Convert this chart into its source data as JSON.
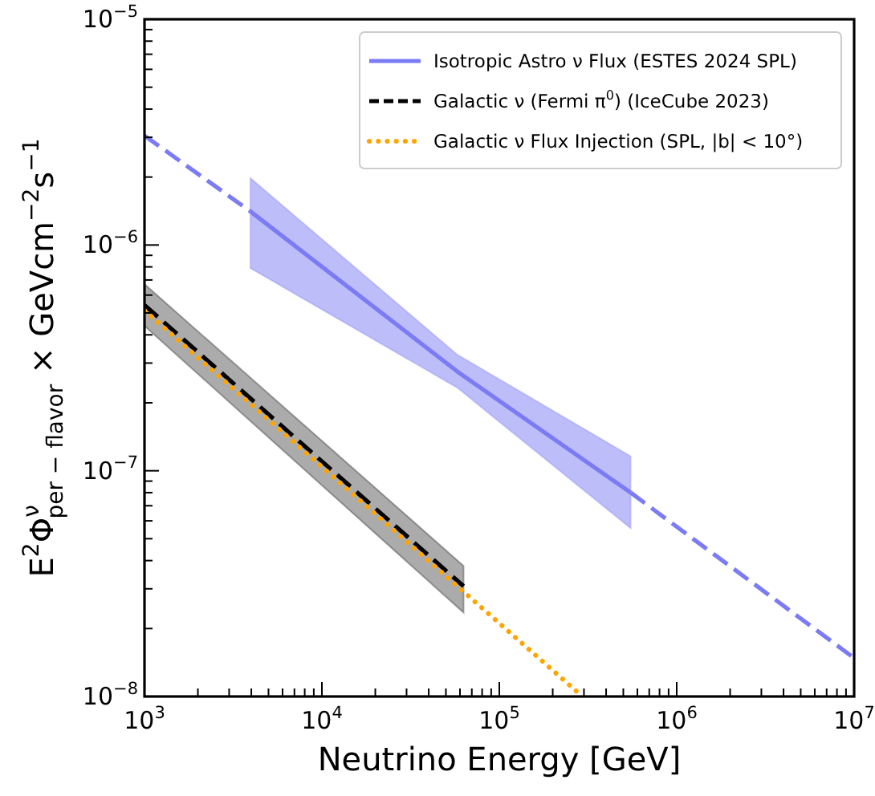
{
  "chart_data": {
    "type": "line",
    "xlabel": "Neutrino Energy [GeV]",
    "ylabel": "E$^{2}$Φ$^{ν}$$_{per − flavor}$ × GeVcm$^{−2}$s$^{−1}$",
    "log": "xy",
    "xlim": [
      1000,
      10000000
    ],
    "ylim": [
      1e-08,
      1e-05
    ],
    "xticks": [
      {
        "value": 1000,
        "label": "10$^{3}$"
      },
      {
        "value": 2000,
        "label": null
      },
      {
        "value": 3000,
        "label": null
      },
      {
        "value": 4000,
        "label": null
      },
      {
        "value": 5000,
        "label": null
      },
      {
        "value": 6000,
        "label": null
      },
      {
        "value": 7000,
        "label": null
      },
      {
        "value": 8000,
        "label": null
      },
      {
        "value": 9000,
        "label": null
      },
      {
        "value": 10000,
        "label": "10$^{4}$"
      },
      {
        "value": 20000,
        "label": null
      },
      {
        "value": 30000,
        "label": null
      },
      {
        "value": 40000,
        "label": null
      },
      {
        "value": 50000,
        "label": null
      },
      {
        "value": 60000,
        "label": null
      },
      {
        "value": 70000,
        "label": null
      },
      {
        "value": 80000,
        "label": null
      },
      {
        "value": 90000,
        "label": null
      },
      {
        "value": 100000,
        "label": "10$^{5}$"
      },
      {
        "value": 200000,
        "label": null
      },
      {
        "value": 300000,
        "label": null
      },
      {
        "value": 400000,
        "label": null
      },
      {
        "value": 500000,
        "label": null
      },
      {
        "value": 600000,
        "label": null
      },
      {
        "value": 700000,
        "label": null
      },
      {
        "value": 800000,
        "label": null
      },
      {
        "value": 900000,
        "label": null
      },
      {
        "value": 1000000,
        "label": "10$^{6}$"
      },
      {
        "value": 2000000,
        "label": null
      },
      {
        "value": 3000000,
        "label": null
      },
      {
        "value": 4000000,
        "label": null
      },
      {
        "value": 5000000,
        "label": null
      },
      {
        "value": 6000000,
        "label": null
      },
      {
        "value": 7000000,
        "label": null
      },
      {
        "value": 8000000,
        "label": null
      },
      {
        "value": 9000000,
        "label": null
      },
      {
        "value": 10000000,
        "label": "10$^{7}$"
      }
    ],
    "yticks": [
      {
        "value": 1e-08,
        "label": "10$^{−8}$"
      },
      {
        "value": 2e-08,
        "label": null
      },
      {
        "value": 3e-08,
        "label": null
      },
      {
        "value": 4e-08,
        "label": null
      },
      {
        "value": 5e-08,
        "label": null
      },
      {
        "value": 6e-08,
        "label": null
      },
      {
        "value": 7e-08,
        "label": null
      },
      {
        "value": 8e-08,
        "label": null
      },
      {
        "value": 9e-08,
        "label": null
      },
      {
        "value": 1e-07,
        "label": "10$^{−7}$"
      },
      {
        "value": 2e-07,
        "label": null
      },
      {
        "value": 3e-07,
        "label": null
      },
      {
        "value": 4e-07,
        "label": null
      },
      {
        "value": 5e-07,
        "label": null
      },
      {
        "value": 6e-07,
        "label": null
      },
      {
        "value": 7e-07,
        "label": null
      },
      {
        "value": 8e-07,
        "label": null
      },
      {
        "value": 9e-07,
        "label": null
      },
      {
        "value": 1e-06,
        "label": "10$^{−6}$"
      },
      {
        "value": 2e-06,
        "label": null
      },
      {
        "value": 3e-06,
        "label": null
      },
      {
        "value": 4e-06,
        "label": null
      },
      {
        "value": 5e-06,
        "label": null
      },
      {
        "value": 6e-06,
        "label": null
      },
      {
        "value": 7e-06,
        "label": null
      },
      {
        "value": 8e-06,
        "label": null
      },
      {
        "value": 9e-06,
        "label": null
      },
      {
        "value": 1e-05,
        "label": "10$^{−5}$"
      }
    ],
    "grid": false,
    "legend": "top right",
    "marker": "none",
    "series": [
      {
        "name": "Isotropic Astro ν Flux (ESTES 2024 SPL)",
        "color": "#7b7bf5",
        "line_style": "solid",
        "x": [
          3950,
          58000,
          550000
        ],
        "values": [
          1.41e-06,
          2.75e-07,
          8e-08
        ],
        "lower": [
          7.9e-07,
          2.33e-07,
          5.56e-08
        ],
        "upper": [
          1.98e-06,
          3.27e-07,
          1.16e-07
        ]
      },
      {
        "color": "#7b7bf5",
        "line_style": "dashed",
        "x": [
          1000,
          3950
        ],
        "values": [
          3.05e-06,
          1.41e-06
        ]
      },
      {
        "color": "#7b7bf5",
        "line_style": "dashed",
        "x": [
          550000,
          10000000
        ],
        "values": [
          8e-08,
          1.48e-08
        ]
      },
      {
        "name": "Galactic ν (Fermi π$^{0}$) (IceCube 2023)",
        "color": "#000000",
        "line_style": "dashed",
        "x": [
          1000,
          62900
        ],
        "values": [
          5.42e-07,
          3.08e-08
        ],
        "lower": [
          4.38e-07,
          2.35e-08
        ],
        "upper": [
          6.71e-07,
          3.79e-08
        ]
      },
      {
        "name": "Galactic ν Flux Injection (SPL, |b| < 10°)",
        "color": "#ffa500",
        "line_style": "dotted",
        "x": [
          1000,
          294000
        ],
        "values": [
          5.13e-07,
          1e-08
        ]
      }
    ]
  }
}
